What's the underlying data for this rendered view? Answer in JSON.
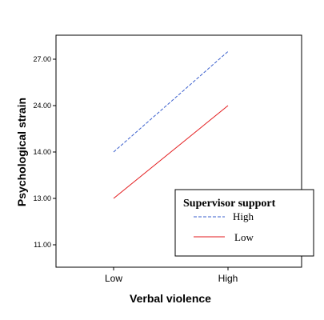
{
  "chart_data": {
    "type": "line",
    "categories": [
      "Low",
      "High"
    ],
    "xlabel": "Verbal violence",
    "ylabel": "Psychological strain",
    "y_ticks": [
      "11.00",
      "13.00",
      "14.00",
      "24.00",
      "27.00"
    ],
    "legend": {
      "title": "Supervisor support",
      "position": "bottom-right"
    },
    "series": [
      {
        "name": "High",
        "values": [
          14.0,
          27.5
        ],
        "color": "#3a5fcd",
        "style": "dashed"
      },
      {
        "name": "Low",
        "values": [
          13.0,
          24.0
        ],
        "color": "#e31a1c",
        "style": "solid"
      }
    ],
    "grid": false
  }
}
